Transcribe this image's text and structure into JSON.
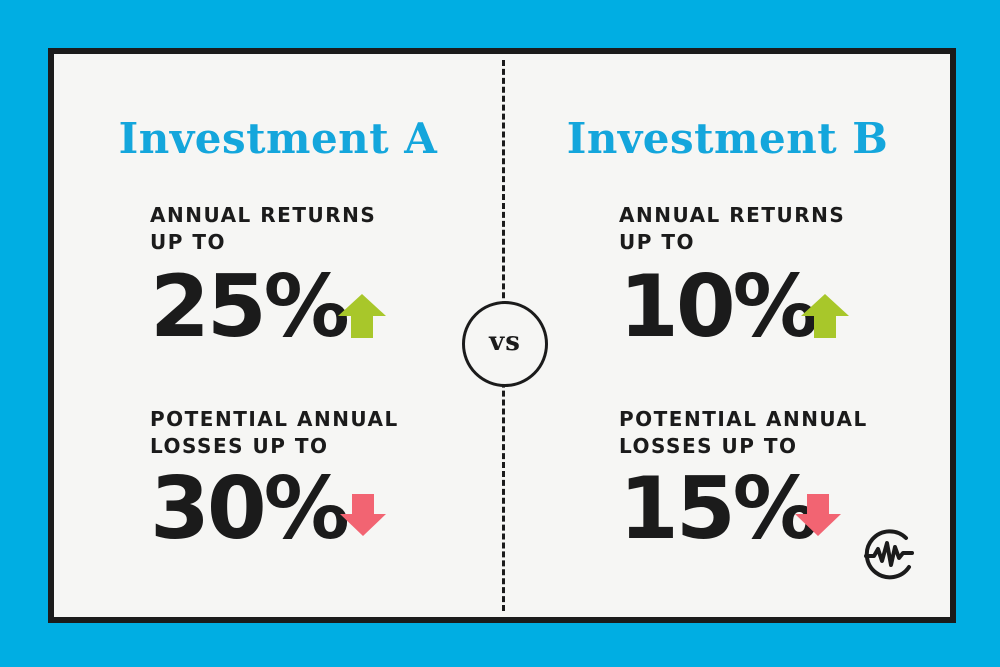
{
  "vs_label": "vs",
  "colors": {
    "background": "#00aee3",
    "title": "#14a6dc",
    "text": "#1b1b1b",
    "up_arrow": "#a8c72a",
    "down_arrow": "#f26472",
    "card": "#f6f6f4"
  },
  "investment_a": {
    "title": "Investment A",
    "returns_label_line1": "ANNUAL RETURNS",
    "returns_label_line2": "UP TO",
    "returns_value": "25%",
    "returns_icon": "arrow-up-icon",
    "losses_label_line1": "POTENTIAL ANNUAL",
    "losses_label_line2": "LOSSES UP TO",
    "losses_value": "30%",
    "losses_icon": "arrow-down-icon"
  },
  "investment_b": {
    "title": "Investment B",
    "returns_label_line1": "ANNUAL RETURNS",
    "returns_label_line2": "UP TO",
    "returns_value": "10%",
    "returns_icon": "arrow-up-icon",
    "losses_label_line1": "POTENTIAL ANNUAL",
    "losses_label_line2": "LOSSES UP TO",
    "losses_value": "15%",
    "losses_icon": "arrow-down-icon"
  },
  "logo_icon": "wave-logo-icon"
}
